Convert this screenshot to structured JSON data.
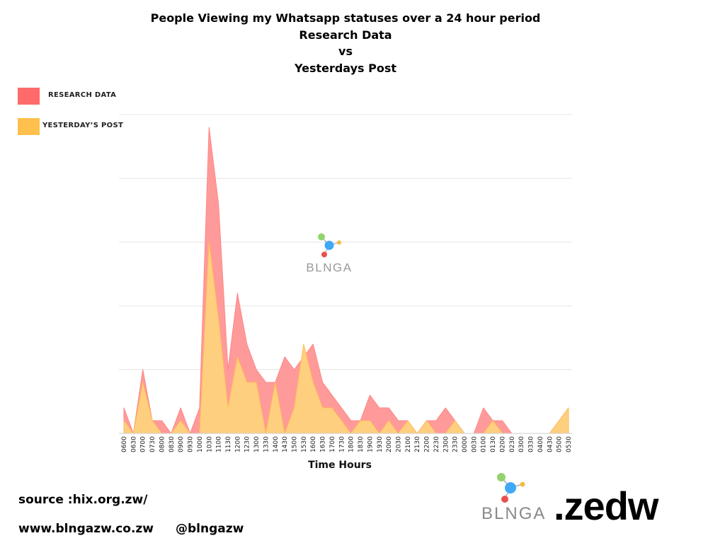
{
  "chart_data": {
    "type": "area",
    "title_lines": [
      "People Viewing my Whatsapp statuses over a 24 hour period",
      "Research Data",
      "vs",
      "Yesterdays Post"
    ],
    "xlabel": "Time Hours",
    "ylabel": "",
    "ylim": [
      0,
      25
    ],
    "grid": true,
    "legend_position": "top-left",
    "categories": [
      "0600",
      "0630",
      "0700",
      "0730",
      "0800",
      "0830",
      "0900",
      "0930",
      "1000",
      "1030",
      "1100",
      "1130",
      "1200",
      "1230",
      "1300",
      "1330",
      "1400",
      "1430",
      "1500",
      "1530",
      "1600",
      "1630",
      "1700",
      "1730",
      "1800",
      "1830",
      "1900",
      "1930",
      "2000",
      "2030",
      "2100",
      "2130",
      "2200",
      "2230",
      "2300",
      "2330",
      "0000",
      "0030",
      "0100",
      "0130",
      "0200",
      "0230",
      "0300",
      "0330",
      "0400",
      "0430",
      "0500",
      "0530"
    ],
    "series": [
      {
        "name": "RESEARCH DATA",
        "color": "#ff6b6b",
        "values": [
          2,
          0,
          5,
          1,
          1,
          0,
          2,
          0,
          2,
          24,
          18,
          5,
          11,
          7,
          5,
          4,
          4,
          6,
          5,
          6,
          7,
          4,
          3,
          2,
          1,
          1,
          3,
          2,
          2,
          1,
          1,
          0,
          1,
          1,
          2,
          1,
          0,
          0,
          2,
          1,
          1,
          0,
          0,
          0,
          0,
          0,
          1,
          2
        ]
      },
      {
        "name": "YESTERDAY'S POST",
        "color": "#ffc04d",
        "values": [
          1,
          0,
          4,
          1,
          0,
          0,
          1,
          0,
          0,
          15,
          9,
          2,
          6,
          4,
          4,
          0,
          4,
          0,
          2,
          7,
          4,
          2,
          2,
          1,
          0,
          1,
          1,
          0,
          1,
          0,
          1,
          0,
          1,
          0,
          0,
          1,
          0,
          0,
          0,
          1,
          0,
          0,
          0,
          0,
          0,
          0,
          1,
          2
        ]
      }
    ]
  },
  "legend": {
    "research_label": "RESEARCH DATA",
    "yesterday_label": "YESTERDAY’S POST",
    "research_color": "#ff6b6b",
    "yesterday_color": "#ffc04d"
  },
  "watermark": {
    "text": "BLNGA"
  },
  "footer": {
    "source": "source :hix.org.zw/",
    "website": "www.blngazw.co.zw",
    "handle": "@blngazw",
    "brand_logo_text": "BLNGA",
    "brand_domain": ".zedw"
  }
}
